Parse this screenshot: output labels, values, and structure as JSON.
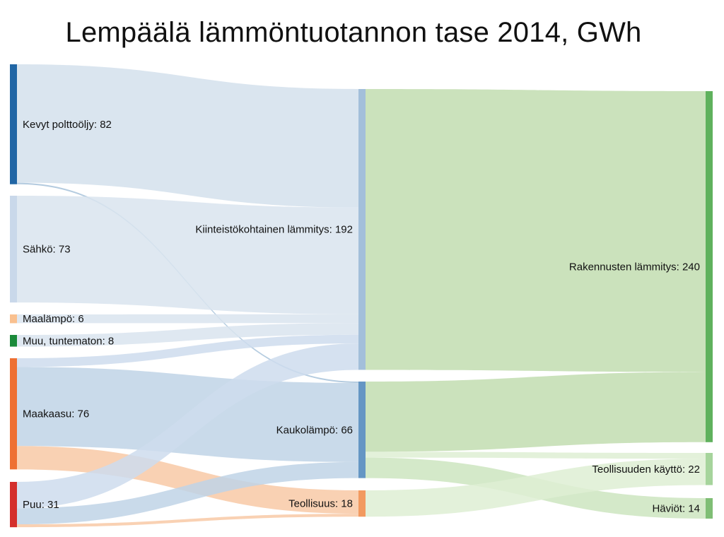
{
  "title": "Lempäälä lämmöntuotannon tase 2014, GWh",
  "chart_data": {
    "type": "sankey",
    "title": "Lempäälä lämmöntuotannon tase 2014, GWh",
    "nodes": [
      {
        "id": "kevyt",
        "label": "Kevyt polttoöljy: 82",
        "name": "Kevyt polttoöljy",
        "value": 82,
        "color": "#2166a5"
      },
      {
        "id": "sahko",
        "label": "Sähkö: 73",
        "name": "Sähkö",
        "value": 73,
        "color": "#c9d8ea"
      },
      {
        "id": "maalampo",
        "label": "Maalämpö: 6",
        "name": "Maalämpö",
        "value": 6,
        "color": "#f9c08f"
      },
      {
        "id": "muu",
        "label": "Muu, tuntematon: 8",
        "name": "Muu, tuntematon",
        "value": 8,
        "color": "#1a8a3a"
      },
      {
        "id": "maakaasu",
        "label": "Maakaasu: 76",
        "name": "Maakaasu",
        "value": 76,
        "color": "#ee7033"
      },
      {
        "id": "puu",
        "label": "Puu: 31",
        "name": "Puu",
        "value": 31,
        "color": "#d42f2c"
      },
      {
        "id": "kiint",
        "label": "Kiinteistökohtainen lämmitys: 192",
        "name": "Kiinteistökohtainen lämmitys",
        "value": 192,
        "color": "#a3bfda"
      },
      {
        "id": "kauko",
        "label": "Kaukolämpö: 66",
        "name": "Kaukolämpö",
        "value": 66,
        "color": "#6596c4"
      },
      {
        "id": "teoll",
        "label": "Teollisuus: 18",
        "name": "Teollisuus",
        "value": 18,
        "color": "#f29a60"
      },
      {
        "id": "rak",
        "label": "Rakennusten lämmitys: 240",
        "name": "Rakennusten lämmitys",
        "value": 240,
        "color": "#5fb15d"
      },
      {
        "id": "teolkay",
        "label": "Teollisuuden käyttö: 22",
        "name": "Teollisuuden käyttö",
        "value": 22,
        "color": "#a6d49c"
      },
      {
        "id": "haviot",
        "label": "Häviöt: 14",
        "name": "Häviöt",
        "value": 14,
        "color": "#7fbe75"
      }
    ],
    "links": [
      {
        "source": "kevyt",
        "target": "kiint",
        "value": 81,
        "color": "#d4e1ec"
      },
      {
        "source": "kevyt",
        "target": "kauko",
        "value": 1,
        "color": "#a8c3da"
      },
      {
        "source": "sahko",
        "target": "kiint",
        "value": 73,
        "color": "#d9e4ef"
      },
      {
        "source": "maalampo",
        "target": "kiint",
        "value": 6,
        "color": "#d9e4ef"
      },
      {
        "source": "muu",
        "target": "kiint",
        "value": 8,
        "color": "#d9e4ef"
      },
      {
        "source": "maakaasu",
        "target": "kiint",
        "value": 6,
        "color": "#cedced"
      },
      {
        "source": "maakaasu",
        "target": "kauko",
        "value": 54,
        "color": "#bfd3e6"
      },
      {
        "source": "maakaasu",
        "target": "teoll",
        "value": 16,
        "color": "#f8c9a6"
      },
      {
        "source": "puu",
        "target": "kiint",
        "value": 18,
        "color": "#cedced"
      },
      {
        "source": "puu",
        "target": "kauko",
        "value": 11,
        "color": "#bfd3e6"
      },
      {
        "source": "puu",
        "target": "teoll",
        "value": 2,
        "color": "#f8c9a6"
      },
      {
        "source": "kiint",
        "target": "rak",
        "value": 192,
        "color": "#c2ddb0"
      },
      {
        "source": "kauko",
        "target": "rak",
        "value": 48,
        "color": "#c2ddb0"
      },
      {
        "source": "kauko",
        "target": "teolkay",
        "value": 4,
        "color": "#deeed3"
      },
      {
        "source": "kauko",
        "target": "haviot",
        "value": 14,
        "color": "#cde5bf"
      },
      {
        "source": "teoll",
        "target": "teolkay",
        "value": 18,
        "color": "#deeed3"
      }
    ]
  }
}
